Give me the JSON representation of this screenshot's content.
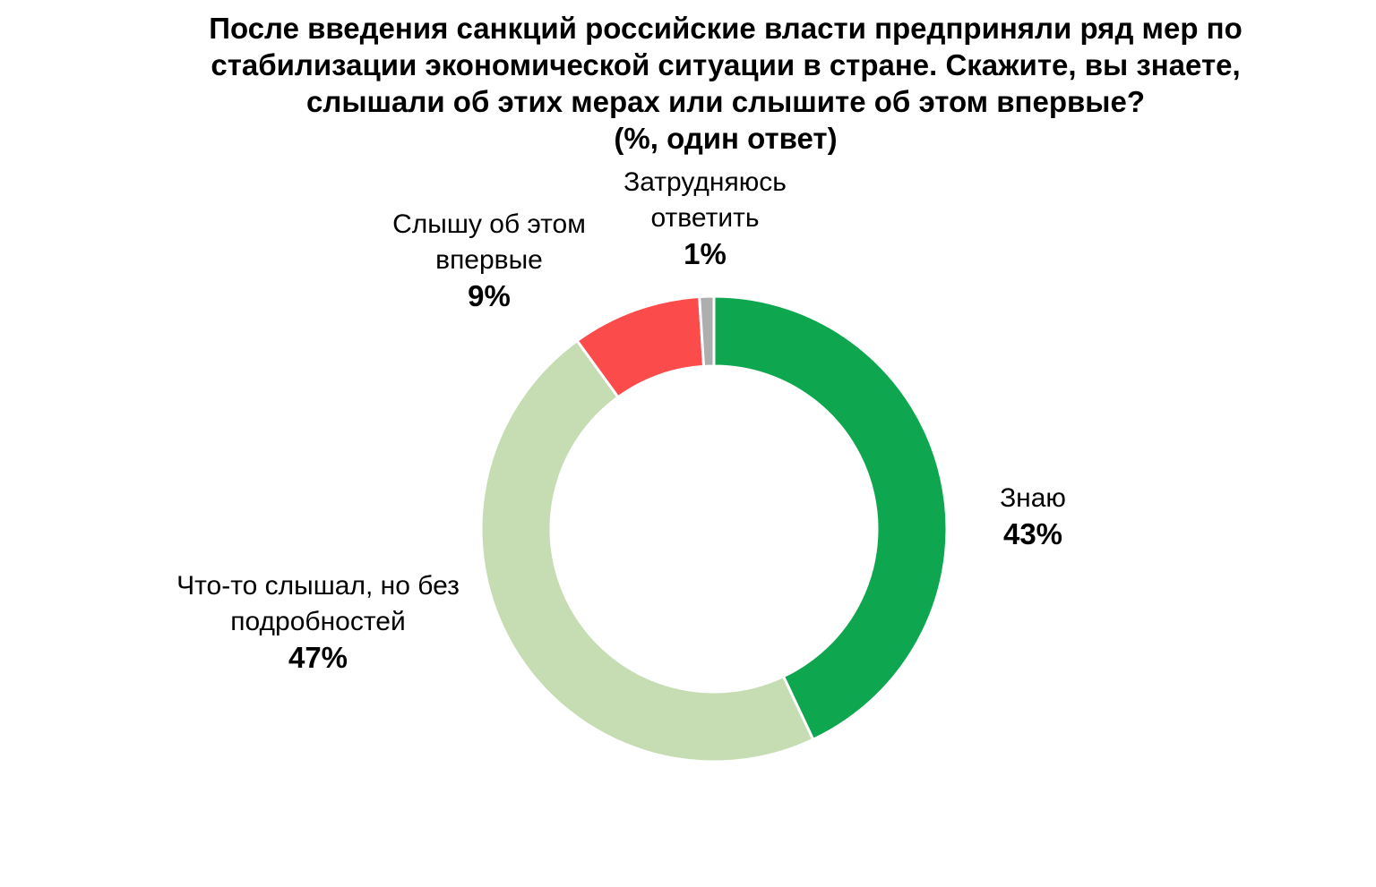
{
  "title": {
    "lines": [
      "После введения санкций российские власти предприняли ряд мер по",
      "стабилизации экономической ситуации в стране. Скажите, вы знаете,",
      "слышали об этих мерах или слышите об этом впервые?",
      "(%, один ответ)"
    ]
  },
  "chart_data": {
    "type": "pie",
    "subtype": "donut",
    "title": "После введения санкций российские власти предприняли ряд мер по стабилизации экономической ситуации в стране. Скажите, вы знаете, слышали об этих мерах или слышите об этом впервые? (%, один ответ)",
    "unit": "%",
    "start_angle_deg": 0,
    "direction": "clockwise",
    "inner_radius_ratio": 0.7,
    "gap_color": "#ffffff",
    "legend_position": "callouts-around-ring",
    "segments": [
      {
        "id": "znayu",
        "label": "Знаю",
        "value": 43,
        "color": "#0ea750"
      },
      {
        "id": "slyshal-bez-podrobnostej",
        "label": "Что-то слышал, но без подробностей",
        "value": 47,
        "color": "#c6ddb4"
      },
      {
        "id": "slyshu-vpervye",
        "label": "Слышу об этом впервые",
        "value": 9,
        "color": "#fc4b4b"
      },
      {
        "id": "zatrudnyayus-otvetit",
        "label": "Затрудняюсь ответить",
        "value": 1,
        "color": "#aeaeae"
      }
    ]
  },
  "callouts": {
    "zatrudnyayus": {
      "lines": [
        "Затрудняюсь",
        "ответить"
      ],
      "percent": "1%"
    },
    "slyshu": {
      "lines": [
        "Слышу об этом",
        "впервые"
      ],
      "percent": "9%"
    },
    "znayu": {
      "lines": [
        "Знаю"
      ],
      "percent": "43%"
    },
    "slyshal": {
      "lines": [
        "Что-то слышал, но без",
        "подробностей"
      ],
      "percent": "47%"
    }
  }
}
